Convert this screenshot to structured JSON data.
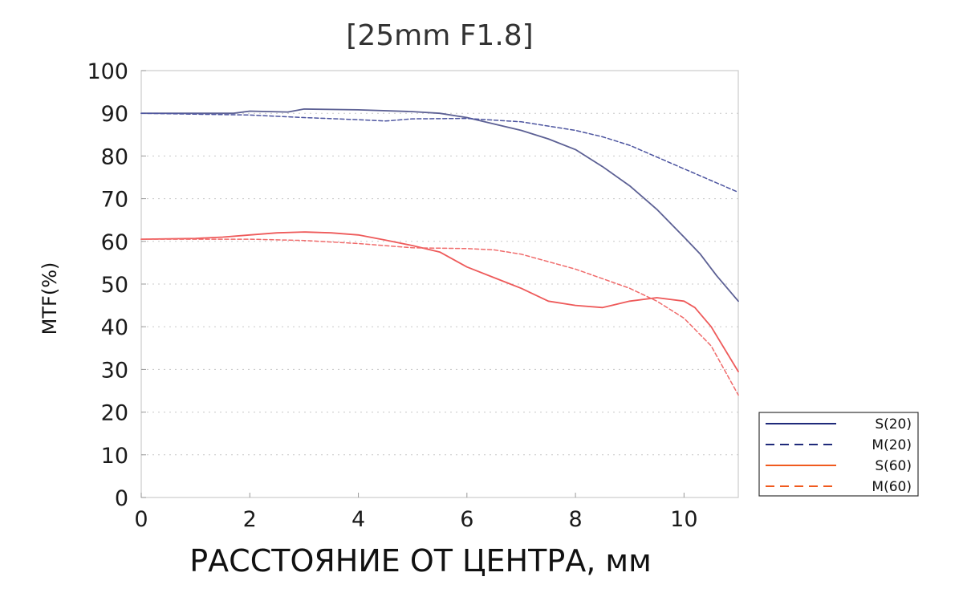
{
  "chart_data": {
    "type": "line",
    "title": "[25mm F1.8]",
    "xlabel": "РАССТОЯНИЕ ОТ ЦЕНТРА, мм",
    "ylabel": "MTF(%)",
    "xlim": [
      0,
      11
    ],
    "ylim": [
      0,
      100
    ],
    "xticks": [
      "0",
      "2",
      "4",
      "6",
      "8",
      "10"
    ],
    "yticks": [
      "0",
      "10",
      "20",
      "30",
      "40",
      "50",
      "60",
      "70",
      "80",
      "90",
      "100"
    ],
    "grid": "horizontal dotted",
    "legend_position": "bottom-right",
    "series": [
      {
        "name": "S(20)",
        "color": "#5c6094",
        "legend_color": "#1f2a7a",
        "dash": "solid",
        "points": [
          [
            0,
            90
          ],
          [
            1,
            90
          ],
          [
            1.7,
            90
          ],
          [
            2,
            90.5
          ],
          [
            2.7,
            90.3
          ],
          [
            3,
            91
          ],
          [
            4,
            90.8
          ],
          [
            5,
            90.4
          ],
          [
            5.5,
            90
          ],
          [
            6,
            89
          ],
          [
            6.5,
            87.5
          ],
          [
            7,
            86
          ],
          [
            7.5,
            84
          ],
          [
            8,
            81.5
          ],
          [
            8.5,
            77.5
          ],
          [
            9,
            73
          ],
          [
            9.5,
            67.5
          ],
          [
            10,
            61
          ],
          [
            10.3,
            57
          ],
          [
            10.6,
            52
          ],
          [
            11,
            46
          ]
        ]
      },
      {
        "name": "M(20)",
        "color": "#4d55a0",
        "legend_color": "#1f2a7a",
        "dash": "dashed",
        "points": [
          [
            0,
            90
          ],
          [
            1,
            89.8
          ],
          [
            2,
            89.6
          ],
          [
            3,
            89
          ],
          [
            4,
            88.5
          ],
          [
            4.5,
            88.2
          ],
          [
            5,
            88.7
          ],
          [
            6,
            88.8
          ],
          [
            7,
            88
          ],
          [
            8,
            86
          ],
          [
            8.5,
            84.5
          ],
          [
            9,
            82.5
          ],
          [
            10,
            77
          ],
          [
            11,
            71.5
          ]
        ]
      },
      {
        "name": "S(60)",
        "color": "#ee5a5a",
        "legend_color": "#f05a1e",
        "dash": "solid",
        "points": [
          [
            0,
            60.5
          ],
          [
            1,
            60.7
          ],
          [
            1.5,
            61
          ],
          [
            2,
            61.5
          ],
          [
            2.5,
            62
          ],
          [
            3,
            62.2
          ],
          [
            3.5,
            62
          ],
          [
            4,
            61.5
          ],
          [
            4.5,
            60.3
          ],
          [
            5,
            59
          ],
          [
            5.5,
            57.5
          ],
          [
            6,
            54
          ],
          [
            6.5,
            51.5
          ],
          [
            7,
            49
          ],
          [
            7.5,
            46
          ],
          [
            8,
            45
          ],
          [
            8.5,
            44.5
          ],
          [
            9,
            46
          ],
          [
            9.5,
            46.8
          ],
          [
            10,
            46
          ],
          [
            10.2,
            44.5
          ],
          [
            10.5,
            40
          ],
          [
            11,
            29.5
          ]
        ]
      },
      {
        "name": "M(60)",
        "color": "#f06b6b",
        "legend_color": "#f05a1e",
        "dash": "dashed",
        "points": [
          [
            0,
            60.5
          ],
          [
            1,
            60.5
          ],
          [
            2,
            60.5
          ],
          [
            3,
            60.2
          ],
          [
            4,
            59.5
          ],
          [
            5,
            58.5
          ],
          [
            6,
            58.3
          ],
          [
            6.5,
            58
          ],
          [
            7,
            57
          ],
          [
            8,
            53.5
          ],
          [
            9,
            49
          ],
          [
            9.5,
            46
          ],
          [
            10,
            42
          ],
          [
            10.5,
            35.5
          ],
          [
            11,
            24
          ]
        ]
      }
    ]
  }
}
